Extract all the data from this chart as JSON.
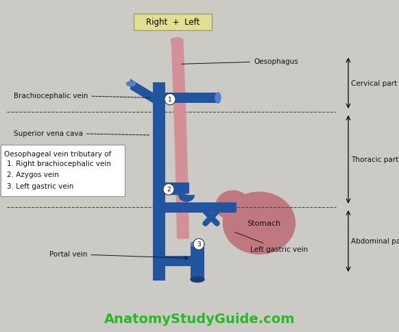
{
  "bg_color": "#cccac5",
  "blue": "#2255a0",
  "blue_light": "#5580cc",
  "pink": "#d49098",
  "stomach_color": "#c07880",
  "title_bg": "#e0e090",
  "label_brachiocephalic": "Brachiocephalic vein",
  "label_svc": "Superior vena cava",
  "label_oesophagus": "Oesophagus",
  "label_portal": "Portal vein",
  "label_left_gastric": "Left gastric vein",
  "label_stomach": "Stomach",
  "label_cervical": "Cervical part",
  "label_thoracic": "Thoracic part",
  "label_abdominal": "Abdominal part",
  "box_title": "Oesophageal vein tributary of",
  "box_items": [
    "1. Right brachiocephalic vein",
    "2. Azygos vein",
    "3. Left gastric vein"
  ],
  "website": "AnatomyStudyGuide.com",
  "font_size": 7.5,
  "website_fontsize": 14,
  "title_text": "Right  +  Left"
}
